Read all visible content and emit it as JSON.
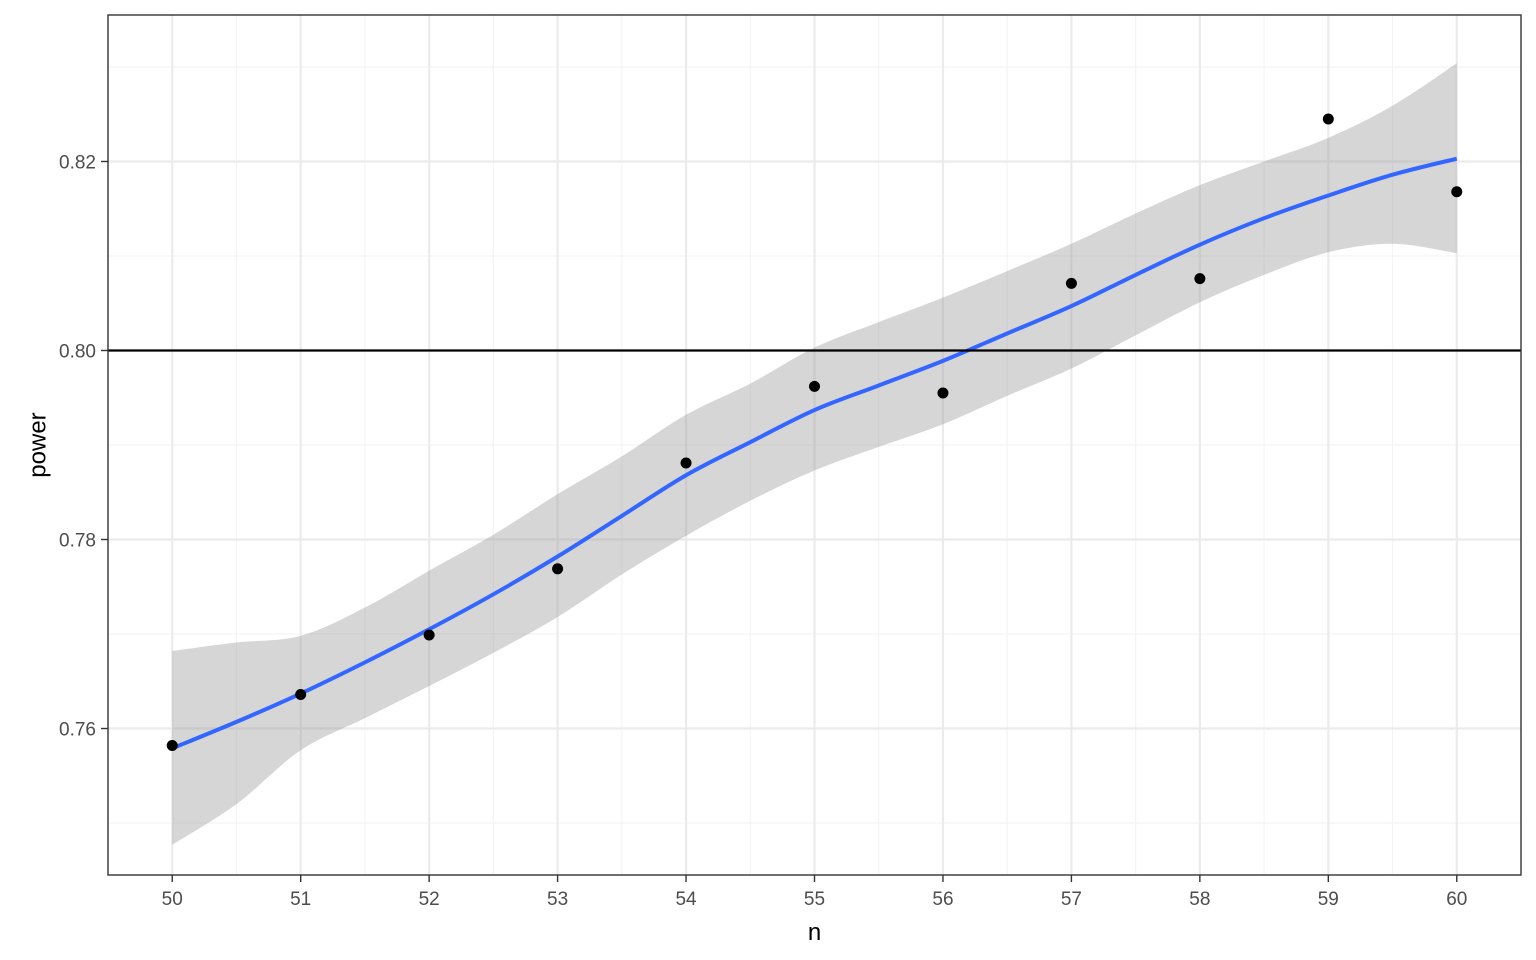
{
  "chart_data": {
    "type": "scatter",
    "title": "",
    "xlabel": "n",
    "ylabel": "power",
    "xlim": [
      49.5,
      60.5
    ],
    "ylim": [
      0.7445,
      0.8355
    ],
    "x_ticks": [
      50,
      51,
      52,
      53,
      54,
      55,
      56,
      57,
      58,
      59,
      60
    ],
    "x_tick_labels": [
      "50",
      "51",
      "52",
      "53",
      "54",
      "55",
      "56",
      "57",
      "58",
      "59",
      "60"
    ],
    "y_ticks": [
      0.76,
      0.78,
      0.8,
      0.82
    ],
    "y_tick_labels": [
      "0.76",
      "0.78",
      "0.80",
      "0.82"
    ],
    "grid": true,
    "legend": "none",
    "points": {
      "x": [
        50,
        51,
        52,
        53,
        54,
        55,
        56,
        57,
        58,
        59,
        60
      ],
      "y": [
        0.7582,
        0.7636,
        0.7699,
        0.7769,
        0.7881,
        0.7962,
        0.7955,
        0.8071,
        0.8076,
        0.8245,
        0.8168
      ],
      "color": "#000000"
    },
    "smooth": {
      "x": [
        50,
        50.5,
        51,
        51.5,
        52,
        52.5,
        53,
        53.5,
        54,
        54.5,
        55,
        55.5,
        56,
        56.5,
        57,
        57.5,
        58,
        58.5,
        59,
        59.5,
        60
      ],
      "y": [
        0.7579,
        0.7607,
        0.7637,
        0.767,
        0.7705,
        0.7742,
        0.7782,
        0.7825,
        0.7868,
        0.7903,
        0.7937,
        0.7963,
        0.7989,
        0.8018,
        0.8047,
        0.808,
        0.8112,
        0.814,
        0.8164,
        0.8186,
        0.8203
      ],
      "lower": [
        0.7477,
        0.752,
        0.7577,
        0.7611,
        0.7645,
        0.768,
        0.7718,
        0.7763,
        0.7804,
        0.7841,
        0.7873,
        0.7898,
        0.7922,
        0.7952,
        0.7981,
        0.8016,
        0.8051,
        0.808,
        0.8104,
        0.8113,
        0.8103
      ],
      "upper": [
        0.7682,
        0.7691,
        0.7698,
        0.7728,
        0.7767,
        0.7805,
        0.7848,
        0.7888,
        0.7932,
        0.7965,
        0.8003,
        0.803,
        0.8056,
        0.8084,
        0.8113,
        0.8145,
        0.8175,
        0.82,
        0.8225,
        0.8259,
        0.8304
      ],
      "line_color": "#3366FF",
      "band_color": "#999999"
    },
    "hline": {
      "y": 0.8,
      "color": "#000000"
    },
    "style": {
      "panel_border": "#333333",
      "major_grid": "#ebebeb",
      "minor_grid": "#f4f4f4",
      "tick_label_color": "#4d4d4d"
    }
  }
}
